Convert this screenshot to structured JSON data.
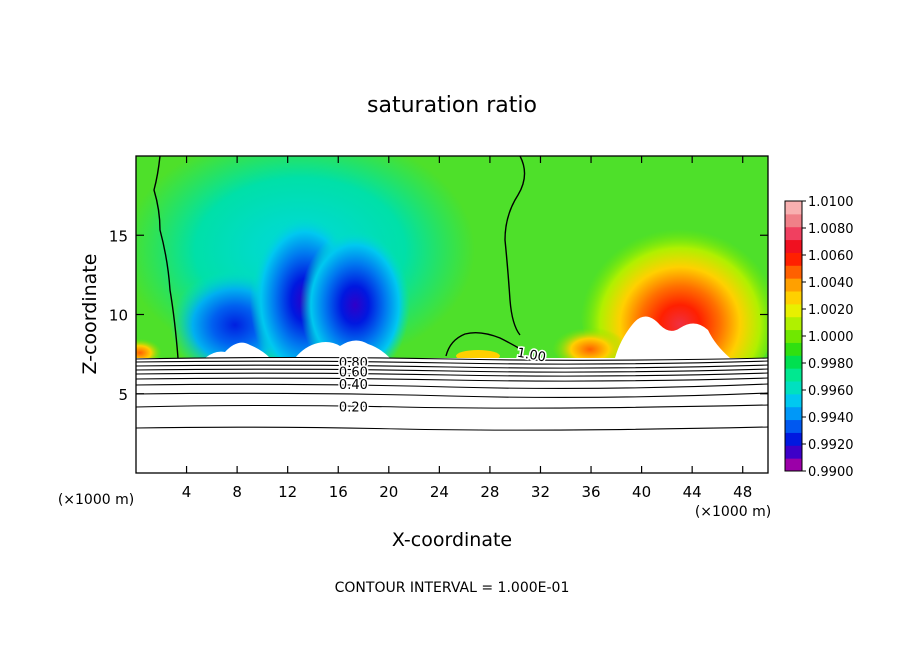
{
  "chart_data": {
    "type": "heatmap",
    "title": "saturation ratio",
    "xlabel": "X-coordinate",
    "ylabel": "Z-coordinate",
    "x_unit": "(×1000 m)",
    "y_unit": "(×1000 m)",
    "xlim": [
      0,
      50
    ],
    "ylim": [
      0,
      20
    ],
    "x_ticks": [
      4,
      8,
      12,
      16,
      20,
      24,
      28,
      32,
      36,
      40,
      44,
      48
    ],
    "y_ticks": [
      5,
      10,
      15
    ],
    "footer": "CONTOUR INTERVAL = 1.000E-01",
    "colorbar": {
      "min": 0.99,
      "max": 1.01,
      "labels": [
        "1.0100",
        "1.0080",
        "1.0060",
        "1.0040",
        "1.0020",
        "1.0000",
        "0.9980",
        "0.9960",
        "0.9940",
        "0.9920",
        "0.9900"
      ],
      "label_values": [
        1.01,
        1.008,
        1.006,
        1.004,
        1.002,
        1.0,
        0.998,
        0.996,
        0.994,
        0.992,
        0.99
      ],
      "colors": [
        "#9b00a8",
        "#3d00c8",
        "#0018e0",
        "#0058f0",
        "#0098f8",
        "#00c8f0",
        "#00e0c0",
        "#00e890",
        "#00e050",
        "#30e010",
        "#70e800",
        "#b0f000",
        "#e8f000",
        "#ffd000",
        "#ffa000",
        "#ff6000",
        "#ff2000",
        "#f01020",
        "#f04060",
        "#f08088",
        "#f8b0b0"
      ]
    },
    "contour_labels": [
      {
        "text": "1.00",
        "x": 31.3,
        "z": 7.5
      },
      {
        "text": "0.80",
        "x": 17.2,
        "z": 7.0
      },
      {
        "text": "0.60",
        "x": 17.2,
        "z": 6.4
      },
      {
        "text": "0.40",
        "x": 17.2,
        "z": 5.6
      },
      {
        "text": "0.20",
        "x": 17.2,
        "z": 4.2
      }
    ]
  }
}
